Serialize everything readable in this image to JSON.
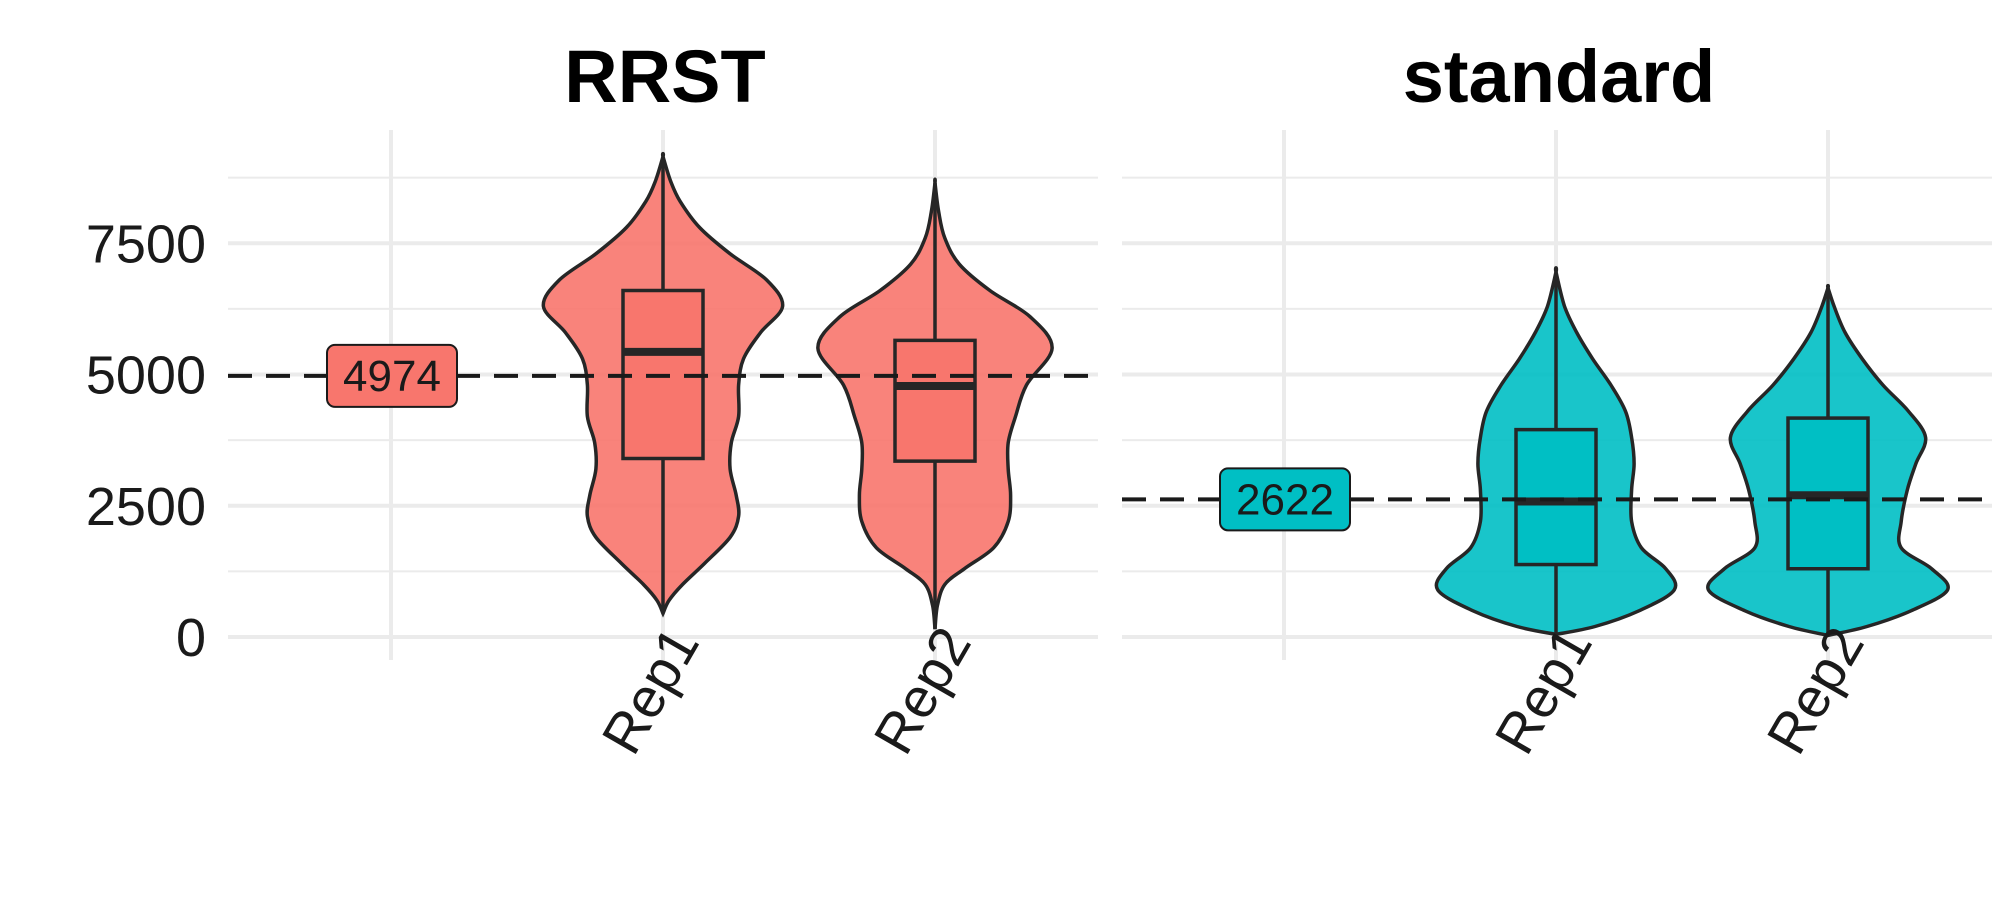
{
  "chart_data": {
    "type": "violin",
    "ylim": [
      0,
      9500
    ],
    "y_ticks": [
      0,
      2500,
      5000,
      7500
    ],
    "y_tick_labels": [
      "0",
      "2500",
      "5000",
      "7500"
    ],
    "grid": true,
    "legend": "none",
    "panels": [
      {
        "title": "RRST",
        "color": "#F8766D",
        "categories": [
          "Rep1",
          "Rep2"
        ],
        "reference_line": {
          "value": 4974,
          "label": "4974"
        },
        "series": [
          {
            "name": "Rep1",
            "min": 450,
            "q1": 3400,
            "median": 5430,
            "q3": 6600,
            "max": 9150,
            "density": [
              [
                450,
                0.0
              ],
              [
                700,
                0.05
              ],
              [
                1000,
                0.16
              ],
              [
                1400,
                0.34
              ],
              [
                1900,
                0.55
              ],
              [
                2300,
                0.62
              ],
              [
                2700,
                0.6
              ],
              [
                3200,
                0.55
              ],
              [
                3700,
                0.56
              ],
              [
                4200,
                0.62
              ],
              [
                4800,
                0.62
              ],
              [
                5300,
                0.66
              ],
              [
                5800,
                0.8
              ],
              [
                6300,
                0.98
              ],
              [
                6800,
                0.85
              ],
              [
                7300,
                0.55
              ],
              [
                7800,
                0.3
              ],
              [
                8300,
                0.14
              ],
              [
                8700,
                0.06
              ],
              [
                9150,
                0.0
              ]
            ]
          },
          {
            "name": "Rep2",
            "min": 150,
            "q1": 3350,
            "median": 4780,
            "q3": 5650,
            "max": 8650,
            "density": [
              [
                150,
                0.0
              ],
              [
                600,
                0.02
              ],
              [
                1000,
                0.08
              ],
              [
                1300,
                0.24
              ],
              [
                1700,
                0.48
              ],
              [
                2200,
                0.6
              ],
              [
                2700,
                0.62
              ],
              [
                3200,
                0.6
              ],
              [
                3700,
                0.6
              ],
              [
                4200,
                0.66
              ],
              [
                4800,
                0.75
              ],
              [
                5500,
                0.96
              ],
              [
                6100,
                0.78
              ],
              [
                6600,
                0.45
              ],
              [
                7100,
                0.2
              ],
              [
                7600,
                0.08
              ],
              [
                8100,
                0.03
              ],
              [
                8650,
                0.0
              ]
            ]
          }
        ]
      },
      {
        "title": "standard",
        "color": "#00BFC4",
        "categories": [
          "Rep1",
          "Rep2"
        ],
        "reference_line": {
          "value": 2622,
          "label": "2622"
        },
        "series": [
          {
            "name": "Rep1",
            "min": 50,
            "q1": 1380,
            "median": 2580,
            "q3": 3950,
            "max": 6950,
            "density": [
              [
                50,
                0.0
              ],
              [
                200,
                0.32
              ],
              [
                500,
                0.68
              ],
              [
                900,
                0.97
              ],
              [
                1300,
                0.9
              ],
              [
                1700,
                0.7
              ],
              [
                2200,
                0.62
              ],
              [
                2800,
                0.62
              ],
              [
                3300,
                0.64
              ],
              [
                3800,
                0.62
              ],
              [
                4300,
                0.57
              ],
              [
                4800,
                0.45
              ],
              [
                5300,
                0.3
              ],
              [
                5800,
                0.17
              ],
              [
                6300,
                0.07
              ],
              [
                6950,
                0.0
              ]
            ]
          },
          {
            "name": "Rep2",
            "min": 30,
            "q1": 1300,
            "median": 2700,
            "q3": 4170,
            "max": 6650,
            "density": [
              [
                30,
                0.0
              ],
              [
                200,
                0.32
              ],
              [
                500,
                0.68
              ],
              [
                900,
                0.98
              ],
              [
                1300,
                0.85
              ],
              [
                1700,
                0.6
              ],
              [
                2200,
                0.6
              ],
              [
                2800,
                0.65
              ],
              [
                3300,
                0.72
              ],
              [
                3800,
                0.8
              ],
              [
                4300,
                0.66
              ],
              [
                4800,
                0.45
              ],
              [
                5300,
                0.28
              ],
              [
                5800,
                0.14
              ],
              [
                6300,
                0.05
              ],
              [
                6650,
                0.0
              ]
            ]
          }
        ]
      }
    ]
  }
}
